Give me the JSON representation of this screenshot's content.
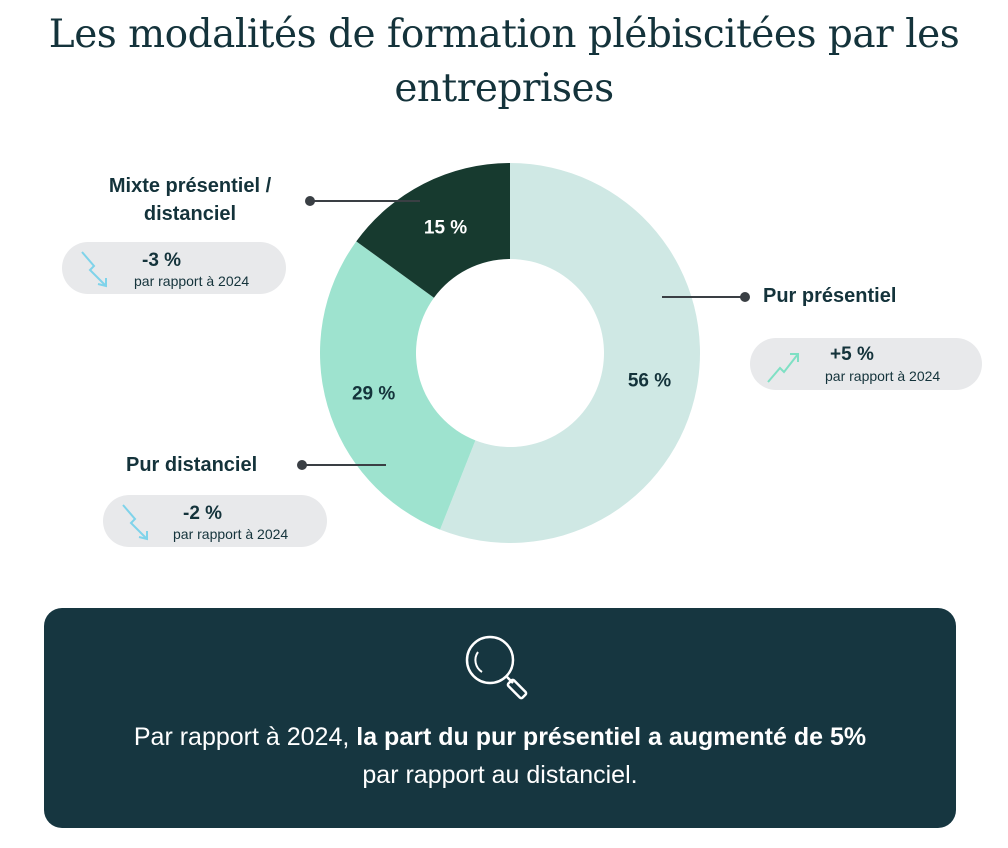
{
  "title": "Les modalités de formation plébiscitées par les entreprises",
  "chart_data": {
    "type": "pie",
    "donut": true,
    "categories": [
      "Pur présentiel",
      "Pur distanciel",
      "Mixte présentiel / distanciel"
    ],
    "values": [
      56,
      29,
      15
    ],
    "data_labels": [
      "56 %",
      "29 %",
      "15 %"
    ],
    "colors": [
      "#cfe8e4",
      "#9ee3cf",
      "#173a2f"
    ],
    "label_colors": [
      "#14333b",
      "#14333b",
      "#ffffff"
    ],
    "changes": [
      {
        "category": "Pur présentiel",
        "delta": "+5 %",
        "reference": "par rapport à 2024",
        "trend": "up"
      },
      {
        "category": "Pur distanciel",
        "delta": "-2 %",
        "reference": "par rapport à 2024",
        "trend": "down"
      },
      {
        "category": "Mixte présentiel / distanciel",
        "delta": "-3 %",
        "reference": "par rapport à 2024",
        "trend": "down"
      }
    ]
  },
  "labels": {
    "mixte_line1": "Mixte présentiel /",
    "mixte_line2": "distanciel",
    "presentiel": "Pur présentiel",
    "distanciel": "Pur distanciel"
  },
  "icons": {
    "trend_up": "trend-up-arrow-icon",
    "trend_down": "trend-down-arrow-icon",
    "search": "magnifier-icon"
  },
  "callout": {
    "prefix": "Par rapport à 2024, ",
    "highlight": "la part du pur présentiel a augmenté de 5%",
    "suffix": "par rapport au distanciel.",
    "background": "#163640"
  }
}
